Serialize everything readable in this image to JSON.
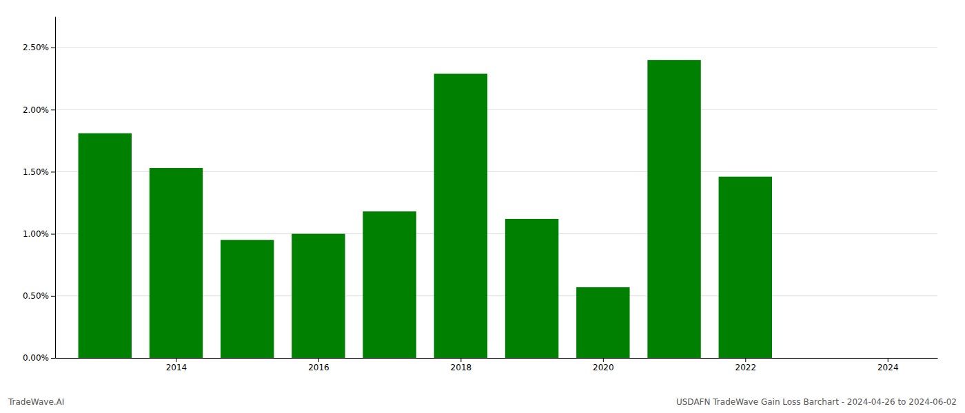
{
  "chart_data": {
    "type": "bar",
    "x": [
      2013,
      2014,
      2015,
      2016,
      2017,
      2018,
      2019,
      2020,
      2021,
      2022,
      2023
    ],
    "values": [
      0.0181,
      0.0153,
      0.0095,
      0.01,
      0.0118,
      0.0229,
      0.0112,
      0.0057,
      0.024,
      0.0146,
      0.0
    ],
    "color": "#008000",
    "xlim": [
      2012.3,
      2024.7
    ],
    "xticks": [
      2014,
      2016,
      2018,
      2020,
      2022,
      2024
    ],
    "ylim": [
      0,
      0.0275
    ],
    "yticks": [
      {
        "value": 0.0,
        "label": "0.00%"
      },
      {
        "value": 0.005,
        "label": "0.50%"
      },
      {
        "value": 0.01,
        "label": "1.00%"
      },
      {
        "value": 0.015,
        "label": "1.50%"
      },
      {
        "value": 0.02,
        "label": "2.00%"
      },
      {
        "value": 0.025,
        "label": "2.50%"
      }
    ],
    "grid": true,
    "annotations": [
      "TradeWave.AI",
      "USDAFN TradeWave Gain Loss Barchart - 2024-04-26 to 2024-06-02"
    ]
  }
}
